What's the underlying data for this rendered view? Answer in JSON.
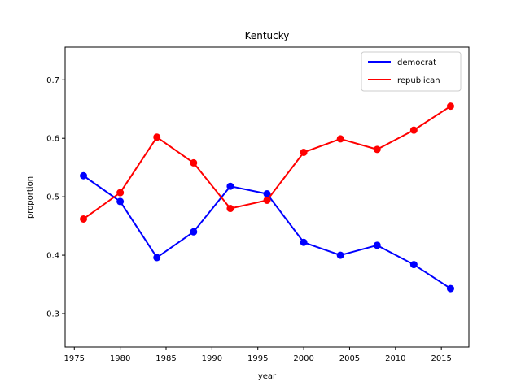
{
  "chart_data": {
    "type": "line",
    "title": "Kentucky",
    "xlabel": "year",
    "ylabel": "proportion",
    "xlim": [
      1974,
      2018
    ],
    "ylim": [
      0.243,
      0.756
    ],
    "xticks": [
      1975,
      1980,
      1985,
      1990,
      1995,
      2000,
      2005,
      2010,
      2015
    ],
    "yticks": [
      0.3,
      0.4,
      0.5,
      0.6,
      0.7
    ],
    "legend_position": "upper-right",
    "grid": false,
    "x": [
      1976,
      1980,
      1984,
      1988,
      1992,
      1996,
      2000,
      2004,
      2008,
      2012,
      2016
    ],
    "series": [
      {
        "name": "democrat",
        "color": "#0000ff",
        "values": [
          0.536,
          0.492,
          0.396,
          0.44,
          0.518,
          0.505,
          0.422,
          0.4,
          0.417,
          0.384,
          0.343
        ]
      },
      {
        "name": "republican",
        "color": "#ff0000",
        "values": [
          0.462,
          0.507,
          0.602,
          0.558,
          0.48,
          0.494,
          0.576,
          0.599,
          0.581,
          0.614,
          0.655
        ]
      }
    ]
  }
}
